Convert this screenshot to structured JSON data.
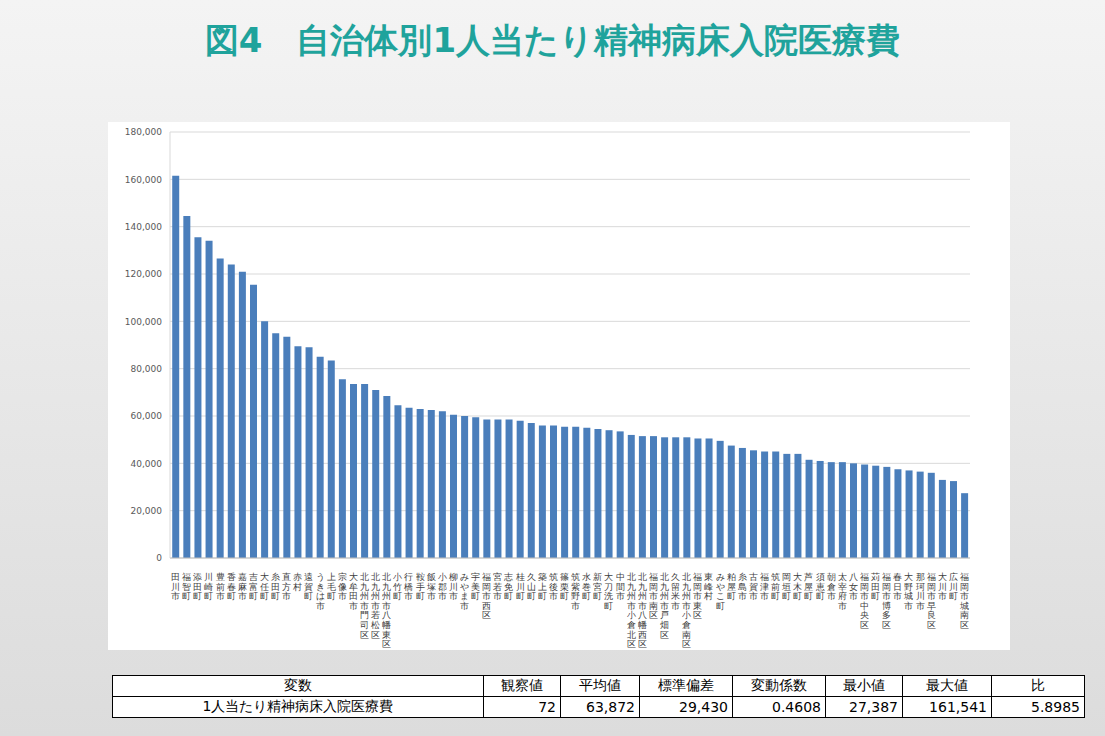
{
  "chart_data": {
    "type": "bar",
    "title": "図4　自治体別1人当たり精神病床入院医療費",
    "categories": [
      "田川市",
      "福智町",
      "添田町",
      "川崎町",
      "豊前市",
      "香春町",
      "嘉麻市",
      "吉富町",
      "大任町",
      "糸田町",
      "直方市",
      "赤村",
      "遠賀町",
      "うきは市",
      "上毛町",
      "宗像市",
      "大牟田市",
      "北九州市門司区",
      "北九州市若松区",
      "北九州市八幡東区",
      "小竹町",
      "行橋市",
      "鞍手町",
      "飯塚市",
      "小郡市",
      "柳川市",
      "みやま市",
      "宇美町",
      "福岡市西区",
      "宮若市",
      "志免町",
      "桂川町",
      "久山町",
      "築上町",
      "筑後市",
      "篠栗町",
      "筑紫野市",
      "水巻町",
      "新宮町",
      "大刀洗町",
      "中間市",
      "北九州市小倉北区",
      "北九州市八幡西区",
      "福岡市南区",
      "北九州市戸畑区",
      "久留米市",
      "北九州市小倉南区",
      "福岡市東区",
      "東峰村",
      "みやこ町",
      "粕屋町",
      "糸島市",
      "古賀市",
      "福津市",
      "筑前町",
      "岡垣町",
      "大木町",
      "芦屋町",
      "須恵町",
      "朝倉市",
      "太宰府市",
      "八女市",
      "福岡市中央区",
      "苅田町",
      "福岡市博多区",
      "春日市",
      "大野城市",
      "那珂川市",
      "福岡市早良区",
      "大川市",
      "広川町",
      "福岡市城南区"
    ],
    "values": [
      161541,
      144500,
      135500,
      134000,
      126500,
      124000,
      121000,
      115500,
      100000,
      95000,
      93500,
      89500,
      89000,
      85000,
      83500,
      75500,
      73500,
      73500,
      71000,
      68500,
      64500,
      63500,
      63000,
      62500,
      62000,
      60500,
      60000,
      59500,
      58500,
      58500,
      58500,
      58000,
      57000,
      56000,
      56000,
      55500,
      55500,
      55000,
      54500,
      54000,
      53500,
      52000,
      51500,
      51500,
      51000,
      51000,
      51000,
      50500,
      50500,
      49500,
      47500,
      46500,
      45500,
      45000,
      45000,
      44000,
      44000,
      41500,
      41000,
      40500,
      40500,
      40000,
      39500,
      39000,
      38500,
      37500,
      37000,
      36500,
      36000,
      33000,
      32500,
      27387
    ],
    "color": "#4a7ebb",
    "ylim": [
      0,
      180000
    ],
    "yticks": [
      0,
      {
        "value": 20000,
        "label": "20,000"
      },
      {
        "value": 40000,
        "label": "40,000"
      },
      {
        "value": 60000,
        "label": "60,000"
      },
      {
        "value": 80000,
        "label": "80,000"
      },
      {
        "value": 100000,
        "label": "100,000"
      },
      {
        "value": 120000,
        "label": "120,000"
      },
      {
        "value": 140000,
        "label": "140,000"
      },
      {
        "value": 160000,
        "label": "160,000"
      },
      {
        "value": 180000,
        "label": "180,000"
      }
    ],
    "grid": true
  },
  "table": {
    "header": [
      "変数",
      "観察値",
      "平均値",
      "標準偏差",
      "変動係数",
      "最小値",
      "最大値",
      "比"
    ],
    "rows": [
      [
        "1人当たり精神病床入院医療費",
        "72",
        "63,872",
        "29,430",
        "0.4608",
        "27,387",
        "161,541",
        "5.8985"
      ]
    ]
  }
}
